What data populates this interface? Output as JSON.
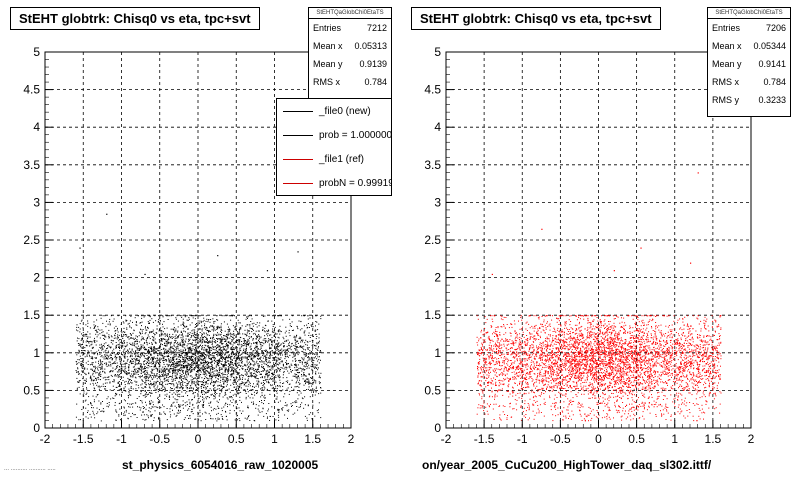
{
  "footer_note": "... ..........  ..........  .....",
  "chart_data": [
    {
      "type": "scatter",
      "title": "StEHT globtrk: Chisq0 vs eta, tpc+svt",
      "xlabel": "st_physics_6054016_raw_1020005",
      "ylabel": "",
      "xlim": [
        -2,
        2
      ],
      "ylim": [
        0,
        5
      ],
      "xticks": [
        "-2",
        "-1.5",
        "-1",
        "-0.5",
        "0",
        "0.5",
        "1",
        "1.5",
        "2"
      ],
      "yticks": [
        "0",
        "0.5",
        "1",
        "1.5",
        "2",
        "2.5",
        "3",
        "3.5",
        "4",
        "4.5",
        "5"
      ],
      "grid": true,
      "marker_color": "#000000",
      "stats": {
        "header": "StEHTQaGlobChi0EtaTS",
        "rows": [
          {
            "label": "Entries",
            "value": "7212"
          },
          {
            "label": "Mean x",
            "value": "0.05313"
          },
          {
            "label": "Mean y",
            "value": "0.9139"
          },
          {
            "label": "RMS x",
            "value": "0.784"
          }
        ]
      },
      "legend": {
        "entries": [
          {
            "label": "_file0 (new)",
            "color": "#000000"
          },
          {
            "label": "prob = 1.000000",
            "color": "#000000"
          },
          {
            "label": "_file1 (ref)",
            "color": "#cc0000"
          },
          {
            "label": "probN = 0.99919",
            "color": "#cc0000"
          }
        ]
      },
      "distribution": {
        "entries": 7212,
        "mean_x": 0.05313,
        "mean_y": 0.9139,
        "rms_x": 0.784,
        "x_range": [
          -1.6,
          1.6
        ],
        "y_range": [
          0.1,
          1.5
        ]
      },
      "outliers": [
        [
          -1.2,
          2.85
        ],
        [
          -1.55,
          2.4
        ],
        [
          0.25,
          2.3
        ],
        [
          1.3,
          2.35
        ],
        [
          -0.7,
          2.05
        ],
        [
          0.9,
          2.1
        ]
      ]
    },
    {
      "type": "scatter",
      "title": "StEHT globtrk: Chisq0 vs eta, tpc+svt",
      "xlabel": "on/year_2005_CuCu200_HighTower_daq_sl302.ittf/",
      "ylabel": "",
      "xlim": [
        -2,
        2
      ],
      "ylim": [
        0,
        5
      ],
      "xticks": [
        "-2",
        "-1.5",
        "-1",
        "-0.5",
        "0",
        "0.5",
        "1",
        "1.5",
        "2"
      ],
      "yticks": [
        "0",
        "0.5",
        "1",
        "1.5",
        "2",
        "2.5",
        "3",
        "3.5",
        "4",
        "4.5",
        "5"
      ],
      "grid": true,
      "marker_color": "#ff0000",
      "stats": {
        "header": "StEHTQaGlobChi0EtaTS",
        "rows": [
          {
            "label": "Entries",
            "value": "7206"
          },
          {
            "label": "Mean x",
            "value": "0.05344"
          },
          {
            "label": "Mean y",
            "value": "0.9141"
          },
          {
            "label": "RMS x",
            "value": "0.784"
          },
          {
            "label": "RMS y",
            "value": "0.3233"
          }
        ]
      },
      "distribution": {
        "entries": 7206,
        "mean_x": 0.05344,
        "mean_y": 0.9141,
        "rms_x": 0.784,
        "rms_y": 0.3233,
        "x_range": [
          -1.6,
          1.6
        ],
        "y_range": [
          0.1,
          1.5
        ]
      },
      "outliers": [
        [
          1.3,
          3.4
        ],
        [
          -0.75,
          2.65
        ],
        [
          0.55,
          2.4
        ],
        [
          1.2,
          2.2
        ],
        [
          -1.4,
          2.05
        ],
        [
          0.2,
          2.1
        ]
      ]
    }
  ]
}
